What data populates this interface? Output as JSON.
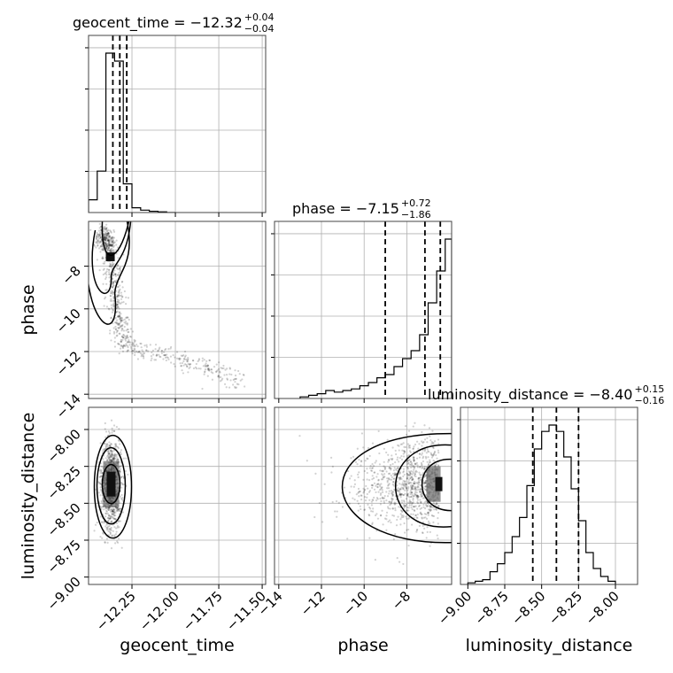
{
  "chart_data": {
    "type": "corner",
    "parameters": [
      "geocent_time",
      "phase",
      "luminosity_distance"
    ],
    "grid": true,
    "titles": [
      {
        "param": "geocent_time",
        "text": "geocent_time = −12.32",
        "sup": "+0.04",
        "sub": "−0.04"
      },
      {
        "param": "phase",
        "text": "phase = −7.15",
        "sup": "+0.72",
        "sub": "−1.86"
      },
      {
        "param": "luminosity_distance",
        "text": "luminosity_distance = −8.40",
        "sup": "+0.15",
        "sub": "−0.16"
      }
    ],
    "axes": {
      "geocent_time": {
        "range": [
          -12.5,
          -11.48
        ],
        "ticks": [
          -12.25,
          -12.0,
          -11.75,
          -11.5
        ],
        "tick_labels": [
          "−12.25",
          "−12.00",
          "−11.75",
          "−11.50"
        ],
        "label": "geocent_time",
        "quantiles": [
          -12.36,
          -12.32,
          -12.28
        ]
      },
      "phase": {
        "range": [
          -14.2,
          -5.9
        ],
        "ticks": [
          -14,
          -12,
          -10,
          -8
        ],
        "tick_labels": [
          "−14",
          "−12",
          "−10",
          "−8"
        ],
        "label": "phase",
        "quantiles": [
          -9.01,
          -7.15,
          -6.43
        ]
      },
      "luminosity_distance": {
        "range": [
          -9.05,
          -7.85
        ],
        "ticks": [
          -9.0,
          -8.75,
          -8.5,
          -8.25,
          -8.0
        ],
        "tick_labels": [
          "−9.00",
          "−8.75",
          "−8.50",
          "−8.25",
          "−8.00"
        ],
        "label": "luminosity_distance",
        "quantiles": [
          -8.56,
          -8.4,
          -8.25
        ]
      }
    },
    "histograms": {
      "geocent_time": {
        "edges": [
          -12.5,
          -12.45,
          -12.4,
          -12.35,
          -12.3,
          -12.25,
          -12.2,
          -12.15,
          -12.1,
          -12.05,
          -12.0
        ],
        "counts": [
          0.08,
          0.26,
          1.0,
          0.95,
          0.18,
          0.03,
          0.015,
          0.008,
          0.004,
          0.0
        ]
      },
      "phase": {
        "edges": [
          -13.0,
          -12.6,
          -12.2,
          -11.8,
          -11.4,
          -11.0,
          -10.6,
          -10.2,
          -9.8,
          -9.4,
          -9.0,
          -8.6,
          -8.2,
          -7.8,
          -7.4,
          -7.0,
          -6.6,
          -6.2,
          -5.9
        ],
        "counts": [
          0.01,
          0.02,
          0.03,
          0.05,
          0.04,
          0.05,
          0.06,
          0.08,
          0.1,
          0.13,
          0.15,
          0.2,
          0.25,
          0.3,
          0.4,
          0.6,
          0.8,
          1.0
        ]
      },
      "luminosity_distance": {
        "edges": [
          -9.0,
          -8.95,
          -8.9,
          -8.85,
          -8.8,
          -8.75,
          -8.7,
          -8.65,
          -8.6,
          -8.55,
          -8.5,
          -8.45,
          -8.4,
          -8.35,
          -8.3,
          -8.25,
          -8.2,
          -8.15,
          -8.1,
          -8.05,
          -8.0
        ],
        "counts": [
          0.01,
          0.02,
          0.03,
          0.08,
          0.13,
          0.2,
          0.3,
          0.42,
          0.62,
          0.85,
          0.96,
          1.0,
          0.96,
          0.8,
          0.6,
          0.4,
          0.2,
          0.1,
          0.05,
          0.02
        ]
      }
    },
    "scatter_shapes": {
      "phase_vs_geocent_time": {
        "description_points": [
          [
            -12.42,
            -6.5
          ],
          [
            -12.38,
            -7.0
          ],
          [
            -12.36,
            -8.0
          ],
          [
            -12.35,
            -9.0
          ],
          [
            -12.34,
            -10.0
          ],
          [
            -12.32,
            -11.0
          ],
          [
            -12.3,
            -11.6
          ],
          [
            -12.2,
            -11.9
          ],
          [
            -12.05,
            -12.2
          ],
          [
            -11.9,
            -12.6
          ],
          [
            -11.75,
            -13.0
          ],
          [
            -11.62,
            -13.4
          ]
        ]
      },
      "luminosity_distance_vs_geocent_time": {
        "center": [
          -12.37,
          -8.37
        ],
        "spread": [
          0.03,
          0.15
        ]
      },
      "luminosity_distance_vs_phase": {
        "center": [
          -6.5,
          -8.37
        ],
        "spread": [
          1.8,
          0.15
        ]
      }
    }
  }
}
